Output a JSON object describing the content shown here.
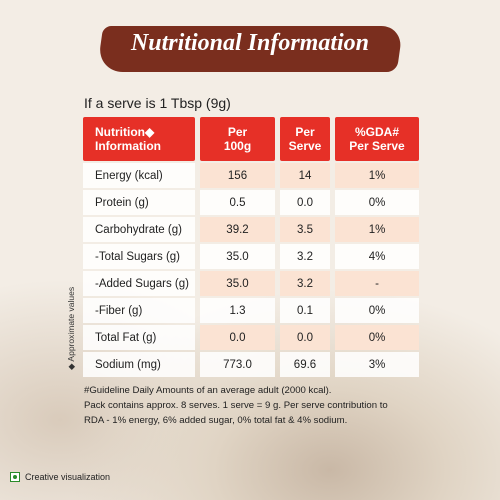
{
  "title": "Nutritional Information",
  "subtitle": "If a serve is 1 Tbsp (9g)",
  "table": {
    "header": [
      [
        "Nutrition◆",
        "Information"
      ],
      [
        "Per",
        "100g"
      ],
      [
        "Per",
        "Serve"
      ],
      [
        "%GDA#",
        "Per Serve"
      ]
    ],
    "rows": [
      [
        "Energy (kcal)",
        "156",
        "14",
        "1%"
      ],
      [
        "Protein (g)",
        "0.5",
        "0.0",
        "0%"
      ],
      [
        "Carbohydrate (g)",
        "39.2",
        "3.5",
        "1%"
      ],
      [
        "-Total Sugars (g)",
        "35.0",
        "3.2",
        "4%"
      ],
      [
        "-Added Sugars (g)",
        "35.0",
        "3.2",
        "-"
      ],
      [
        "-Fiber (g)",
        "1.3",
        "0.1",
        "0%"
      ],
      [
        "Total Fat (g)",
        "0.0",
        "0.0",
        "0%"
      ],
      [
        "Sodium (mg)",
        "773.0",
        "69.6",
        "3%"
      ]
    ]
  },
  "side_note": "◆ Approximate values",
  "footnote": [
    "#Guideline Daily Amounts of an average adult (2000 kcal).",
    "Pack contains approx. 8 serves. 1 serve = 9 g. Per serve contribution to",
    "RDA - 1% energy, 6% added sugar, 0% total fat & 4% sodium."
  ],
  "badge": "Creative visualization"
}
